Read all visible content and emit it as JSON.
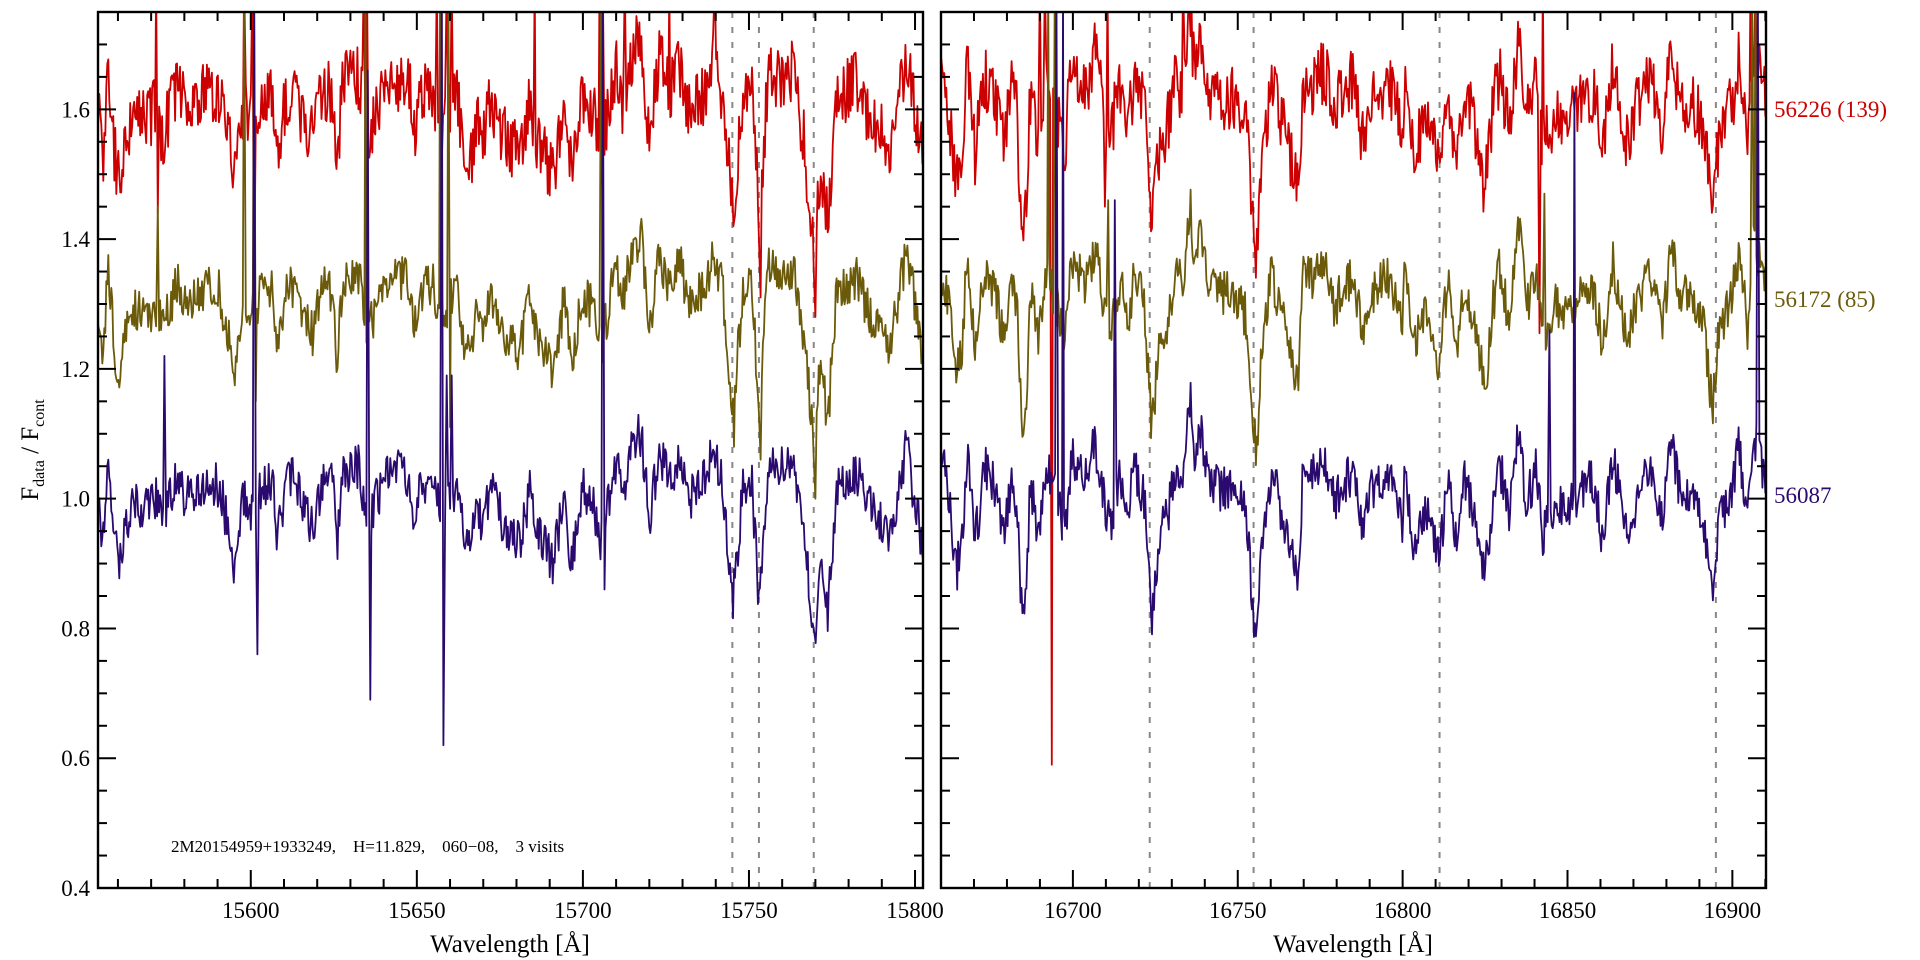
{
  "chart_data": {
    "type": "line",
    "ylabel": {
      "main": "F",
      "sub1": "data",
      "mid": " / F",
      "sub2": "cont"
    },
    "xlabel": "Wavelength [Å]",
    "ylim": [
      0.4,
      1.75
    ],
    "yticks": [
      0.4,
      0.6,
      0.8,
      1.0,
      1.2,
      1.4,
      1.6
    ],
    "ytick_labels": [
      "0.4",
      "0.6",
      "0.8",
      "1.0",
      "1.2",
      "1.4",
      "1.6"
    ],
    "y_minor_step": 0.05,
    "x_minor_step": 10,
    "annotation": "2M20154959+1933249,    H=11.829,    060−08,    3 visits",
    "series": [
      {
        "name": "56226 (139)",
        "color": "#cc0000",
        "offset": 0.6,
        "noise": 0.05
      },
      {
        "name": "56172 (85)",
        "color": "#6b5a0a",
        "offset": 0.3,
        "noise": 0.035
      },
      {
        "name": "56087",
        "color": "#2a0a6e",
        "offset": 0.0,
        "noise": 0.035
      }
    ],
    "panels": [
      {
        "xlim": [
          15554,
          15802.4
        ],
        "xticks": [
          15600,
          15650,
          15700,
          15750,
          15800
        ],
        "xtick_labels": [
          "15600",
          "15650",
          "15700",
          "15750",
          "15800"
        ],
        "dashed_lines": [
          15745,
          15753,
          15769.5
        ],
        "profile": [
          [
            15554,
            1.0
          ],
          [
            15555.4,
            0.92
          ],
          [
            15557,
            1.05
          ],
          [
            15559,
            0.93
          ],
          [
            15560.5,
            0.89
          ],
          [
            15562.6,
            0.96
          ],
          [
            15564.5,
            1.0
          ],
          [
            15567.5,
            0.98
          ],
          [
            15571.7,
            1.0
          ],
          [
            15573.5,
            0.96
          ],
          [
            15577.7,
            1.03
          ],
          [
            15580.7,
            1.0
          ],
          [
            15586.7,
            1.03
          ],
          [
            15590.6,
            1.02
          ],
          [
            15593.7,
            0.94
          ],
          [
            15595,
            0.9
          ],
          [
            15597.6,
            1.0
          ],
          [
            15600,
            0.98
          ],
          [
            15603.6,
            1.02
          ],
          [
            15606.6,
            1.03
          ],
          [
            15608,
            0.94
          ],
          [
            15610.7,
            1.02
          ],
          [
            15612.7,
            1.03
          ],
          [
            15618.7,
            0.95
          ],
          [
            15621.7,
            1.03
          ],
          [
            15624.7,
            1.02
          ],
          [
            15625.9,
            0.92
          ],
          [
            15627.7,
            1.04
          ],
          [
            15632.8,
            1.05
          ],
          [
            15634.9,
            0.95
          ],
          [
            15638,
            1.0
          ],
          [
            15642.8,
            1.05
          ],
          [
            15648,
            1.03
          ],
          [
            15648.8,
            0.96
          ],
          [
            15651,
            1.02
          ],
          [
            15654.8,
            1.03
          ],
          [
            15657,
            0.98
          ],
          [
            15662,
            1.02
          ],
          [
            15664,
            0.95
          ],
          [
            15666,
            0.91
          ],
          [
            15668,
            1.0
          ],
          [
            15670,
            0.95
          ],
          [
            15672,
            1.02
          ],
          [
            15676,
            0.96
          ],
          [
            15681,
            0.93
          ],
          [
            15684,
            1.01
          ],
          [
            15686,
            0.95
          ],
          [
            15691,
            0.9
          ],
          [
            15694.5,
            1.01
          ],
          [
            15696.5,
            0.9
          ],
          [
            15700,
            1.02
          ],
          [
            15703.5,
            0.985
          ],
          [
            15705.5,
            0.93
          ],
          [
            15710,
            1.06
          ],
          [
            15712,
            1.0
          ],
          [
            15715,
            1.09
          ],
          [
            15717.6,
            1.1
          ],
          [
            15720,
            0.96
          ],
          [
            15723,
            1.08
          ],
          [
            15726,
            1.02
          ],
          [
            15729,
            1.07
          ],
          [
            15732,
            1.0
          ],
          [
            15736,
            1.02
          ],
          [
            15739,
            1.07
          ],
          [
            15742,
            1.03
          ],
          [
            15745.2,
            0.84
          ],
          [
            15748,
            1.01
          ],
          [
            15750.7,
            1.04
          ],
          [
            15753.2,
            0.83
          ],
          [
            15755.8,
            1.06
          ],
          [
            15758.3,
            1.04
          ],
          [
            15763.3,
            1.06
          ],
          [
            15766.3,
            0.96
          ],
          [
            15769.8,
            0.78
          ],
          [
            15771.4,
            0.91
          ],
          [
            15773.8,
            0.82
          ],
          [
            15776.3,
            1.02
          ],
          [
            15782.4,
            1.04
          ],
          [
            15786,
            0.99
          ],
          [
            15792.4,
            0.94
          ],
          [
            15797.4,
            1.08
          ],
          [
            15802.4,
            0.92
          ]
        ],
        "features": [
          [
            [
              15571.5,
              1.8
            ],
            [
              15572,
              1.44
            ],
            [
              15598,
              1.8
            ],
            [
              15600.5,
              1.8
            ],
            [
              15601,
              1.3
            ],
            [
              15634,
              1.8
            ],
            [
              15635,
              1.8
            ],
            [
              15656,
              1.8
            ],
            [
              15659,
              1.8
            ],
            [
              15660.5,
              1.8
            ],
            [
              15685.5,
              1.8
            ],
            [
              15705,
              1.8
            ],
            [
              15706,
              1.8
            ],
            [
              15712.6,
              1.8
            ],
            [
              15726,
              1.8
            ],
            [
              15739.7,
              1.8
            ],
            [
              15745.3,
              1.42
            ],
            [
              15753.5,
              1.31
            ],
            [
              15770,
              1.28
            ]
          ],
          [
            [
              15572,
              1.45
            ],
            [
              15598,
              1.8
            ],
            [
              15601,
              1.8
            ],
            [
              15601.5,
              1.15
            ],
            [
              15634.5,
              1.8
            ],
            [
              15657,
              1.8
            ],
            [
              15659.5,
              1.8
            ],
            [
              15660,
              1.11
            ],
            [
              15705.5,
              1.8
            ],
            [
              15706,
              1.21
            ],
            [
              15745.5,
              1.08
            ],
            [
              15753.5,
              1.06
            ],
            [
              15770,
              1.0
            ]
          ],
          [
            [
              15574,
              1.22
            ],
            [
              15601,
              1.8
            ],
            [
              15602,
              0.76
            ],
            [
              15635.2,
              1.66
            ],
            [
              15636,
              0.69
            ],
            [
              15657.5,
              1.8
            ],
            [
              15658,
              0.62
            ],
            [
              15659,
              1.19
            ],
            [
              15660.5,
              1.19
            ],
            [
              15706,
              1.8
            ],
            [
              15706.5,
              0.86
            ]
          ]
        ]
      },
      {
        "xlim": [
          16660,
          16910.2
        ],
        "xticks": [
          16700,
          16750,
          16800,
          16850,
          16900
        ],
        "xtick_labels": [
          "16700",
          "16750",
          "16800",
          "16850",
          "16900"
        ],
        "dashed_lines": [
          16723.3,
          16754.8,
          16811.2,
          16895
        ],
        "profile": [
          [
            16658,
            1.015
          ],
          [
            16661,
            1.04
          ],
          [
            16663,
            0.97
          ],
          [
            16664.8,
            0.89
          ],
          [
            16666.3,
            0.93
          ],
          [
            16668,
            1.08
          ],
          [
            16670.3,
            0.93
          ],
          [
            16673.4,
            1.05
          ],
          [
            16676.4,
            1.015
          ],
          [
            16678.9,
            0.95
          ],
          [
            16681.4,
            1.03
          ],
          [
            16683,
            0.995
          ],
          [
            16684.5,
            0.82
          ],
          [
            16686,
            0.86
          ],
          [
            16687,
            1.03
          ],
          [
            16689.5,
            0.95
          ],
          [
            16692,
            1.06
          ],
          [
            16697.6,
            0.945
          ],
          [
            16699.6,
            1.06
          ],
          [
            16703.7,
            1.03
          ],
          [
            16706.7,
            1.085
          ],
          [
            16708.7,
            1.02
          ],
          [
            16711.2,
            0.96
          ],
          [
            16714.3,
            1.03
          ],
          [
            16716.8,
            0.98
          ],
          [
            16718.8,
            1.05
          ],
          [
            16721.8,
            0.995
          ],
          [
            16723.9,
            0.8
          ],
          [
            16725.9,
            0.93
          ],
          [
            16728.9,
            0.98
          ],
          [
            16731.4,
            1.055
          ],
          [
            16733.4,
            1.015
          ],
          [
            16735.5,
            1.16
          ],
          [
            16737,
            1.04
          ],
          [
            16738.5,
            1.11
          ],
          [
            16741,
            1.03
          ],
          [
            16745,
            1.015
          ],
          [
            16749.1,
            1.015
          ],
          [
            16752.6,
            0.98
          ],
          [
            16754.6,
            0.83
          ],
          [
            16755.7,
            0.77
          ],
          [
            16757.2,
            0.93
          ],
          [
            16760.2,
            1.045
          ],
          [
            16763.2,
            0.98
          ],
          [
            16765.2,
            0.95
          ],
          [
            16768.3,
            0.865
          ],
          [
            16769.8,
            1.045
          ],
          [
            16773.3,
            1.04
          ],
          [
            16776.4,
            1.06
          ],
          [
            16779.4,
            0.99
          ],
          [
            16781,
            1.015
          ],
          [
            16785,
            1.045
          ],
          [
            16788,
            0.95
          ],
          [
            16791,
            1.02
          ],
          [
            16796,
            1.045
          ],
          [
            16800,
            0.96
          ],
          [
            16800.6,
            1.06
          ],
          [
            16803,
            0.93
          ],
          [
            16807,
            0.98
          ],
          [
            16811.2,
            0.91
          ],
          [
            16813.7,
            1.04
          ],
          [
            16816.2,
            0.93
          ],
          [
            16818.8,
            1.03
          ],
          [
            16822.3,
            0.97
          ],
          [
            16824.3,
            0.89
          ],
          [
            16825.8,
            0.905
          ],
          [
            16827.4,
            1.0
          ],
          [
            16829.4,
            1.055
          ],
          [
            16832.4,
            0.97
          ],
          [
            16835.4,
            1.125
          ],
          [
            16837.4,
            0.99
          ],
          [
            16840.5,
            1.045
          ],
          [
            16842.5,
            0.945
          ],
          [
            16846.5,
            1.0
          ],
          [
            16849.6,
            0.975
          ],
          [
            16853.6,
            1.015
          ],
          [
            16857.7,
            1.03
          ],
          [
            16860.7,
            0.935
          ],
          [
            16863.7,
            1.07
          ],
          [
            16867.8,
            0.945
          ],
          [
            16871.8,
            1.015
          ],
          [
            16875.8,
            1.045
          ],
          [
            16878.9,
            0.96
          ],
          [
            16881.4,
            1.1
          ],
          [
            16883.9,
            1.015
          ],
          [
            16888,
            1.005
          ],
          [
            16891,
            0.975
          ],
          [
            16894,
            0.84
          ],
          [
            16896,
            0.96
          ],
          [
            16900.1,
            1.015
          ],
          [
            16902,
            1.085
          ],
          [
            16904.6,
            0.96
          ],
          [
            16906.6,
            1.1
          ],
          [
            16910.2,
            1.02
          ]
        ],
        "features": [
          [
            [
              16690,
              1.8
            ],
            [
              16691.5,
              1.8
            ],
            [
              16693.6,
              0.59
            ],
            [
              16709.7,
              1.45
            ],
            [
              16710.5,
              1.8
            ],
            [
              16733.4,
              1.8
            ],
            [
              16841.5,
              1.255
            ],
            [
              16842.5,
              1.8
            ],
            [
              16905.5,
              1.8
            ],
            [
              16907,
              1.8
            ]
          ],
          [
            [
              16692.5,
              1.8
            ],
            [
              16694.5,
              1.8
            ],
            [
              16710.7,
              1.46
            ],
            [
              16843,
              1.47
            ],
            [
              16906,
              1.8
            ],
            [
              16907,
              1.8
            ]
          ],
          [
            [
              16695,
              1.8
            ],
            [
              16697,
              1.8
            ],
            [
              16712.7,
              1.46
            ],
            [
              16844.5,
              1.26
            ],
            [
              16852.1,
              1.625
            ],
            [
              16907.7,
              1.8
            ]
          ]
        ]
      }
    ]
  }
}
